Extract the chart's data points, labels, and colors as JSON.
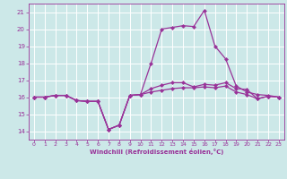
{
  "xlabel": "Windchill (Refroidissement éolien,°C)",
  "ylabel": "",
  "xlim": [
    -0.5,
    23.5
  ],
  "ylim": [
    13.5,
    21.5
  ],
  "yticks": [
    14,
    15,
    16,
    17,
    18,
    19,
    20,
    21
  ],
  "xticks": [
    0,
    1,
    2,
    3,
    4,
    5,
    6,
    7,
    8,
    9,
    10,
    11,
    12,
    13,
    14,
    15,
    16,
    17,
    18,
    19,
    20,
    21,
    22,
    23
  ],
  "bg_color": "#cce8e8",
  "grid_color": "#ffffff",
  "line_color": "#993399",
  "line1_y": [
    16.0,
    16.0,
    16.1,
    16.1,
    15.8,
    15.75,
    15.75,
    14.1,
    14.35,
    16.1,
    16.15,
    18.0,
    20.0,
    20.1,
    20.2,
    20.15,
    21.1,
    19.0,
    18.25,
    16.65,
    16.3,
    16.15,
    16.1,
    16.0
  ],
  "line2_y": [
    16.0,
    16.0,
    16.1,
    16.1,
    15.8,
    15.75,
    15.75,
    14.1,
    14.35,
    16.1,
    16.15,
    16.5,
    16.7,
    16.85,
    16.85,
    16.6,
    16.75,
    16.7,
    16.85,
    16.5,
    16.45,
    15.9,
    16.05,
    16.0
  ],
  "line3_y": [
    16.0,
    16.0,
    16.1,
    16.1,
    15.8,
    15.75,
    15.75,
    14.1,
    14.35,
    16.1,
    16.15,
    16.3,
    16.4,
    16.5,
    16.55,
    16.55,
    16.6,
    16.55,
    16.65,
    16.3,
    16.15,
    15.9,
    16.05,
    16.0
  ],
  "marker_size": 2.5,
  "linewidth": 0.9
}
